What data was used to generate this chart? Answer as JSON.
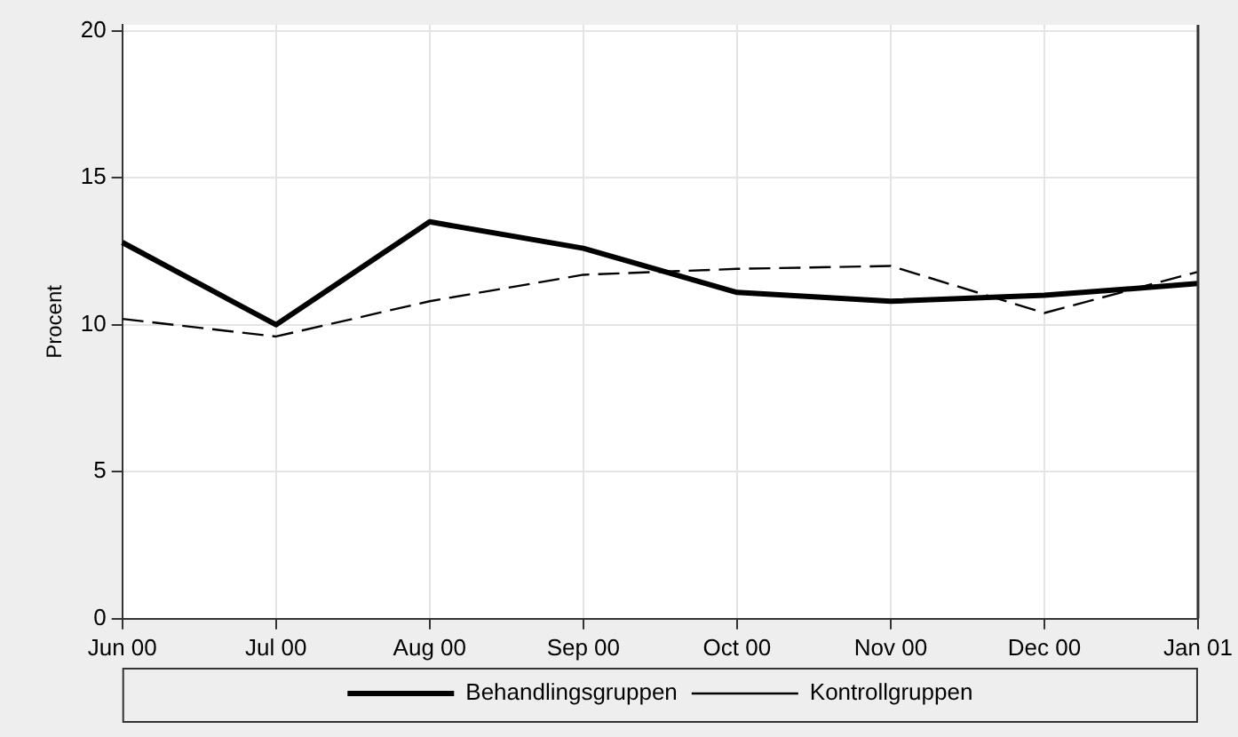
{
  "chart_data": {
    "type": "line",
    "ylabel": "Procent",
    "categories": [
      "Jun 00",
      "Jul 00",
      "Aug 00",
      "Sep 00",
      "Oct 00",
      "Nov 00",
      "Dec 00",
      "Jan 01"
    ],
    "series": [
      {
        "name": "Behandlingsgruppen",
        "color": "#000000",
        "values": [
          12.8,
          10.0,
          13.5,
          12.6,
          11.1,
          10.8,
          11.0,
          11.4
        ],
        "line_style": "solid"
      },
      {
        "name": "Kontrollgruppen",
        "color": "#000000",
        "values": [
          10.2,
          9.6,
          10.8,
          11.7,
          11.9,
          12.0,
          10.4,
          11.8
        ],
        "line_style": "dashed"
      }
    ],
    "ylim": [
      0,
      20.2
    ],
    "yticks": [
      0,
      5,
      10,
      15,
      20
    ],
    "grid": true,
    "legend": "bottom",
    "marker": "none",
    "ref_lines": [
      {
        "axis": "x",
        "value": "Jan 01",
        "color": "#333333"
      }
    ]
  }
}
